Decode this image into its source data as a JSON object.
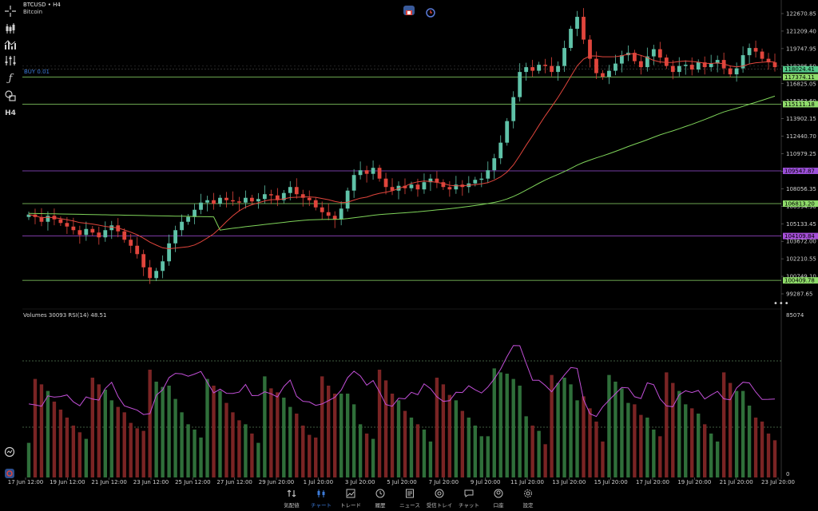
{
  "symbol": {
    "line1": "BTCUSD • H4",
    "line2": "Bitcoin"
  },
  "toolbar": [
    {
      "name": "crosshair-icon"
    },
    {
      "name": "candles-icon"
    },
    {
      "name": "indicators-icon"
    },
    {
      "name": "function-icon"
    },
    {
      "name": "objects-icon"
    },
    {
      "name": "timeframe-label",
      "label": "H4"
    }
  ],
  "trade_line_label": "BUY 0.01",
  "indicator_label": "Volumes 30093 RSI(14) 48.51",
  "price_axis": [
    "122670.85",
    "121209.40",
    "119747.95",
    "118286.50",
    "116825.05",
    "115363.60",
    "113902.15",
    "112440.70",
    "110979.25",
    "109517.80",
    "108056.35",
    "106594.90",
    "105133.45",
    "103672.00",
    "102210.55",
    "100749.10",
    "99287.65"
  ],
  "price_tags": [
    {
      "value": "118024.41",
      "color": "#54c98a",
      "price": 118024.41
    },
    {
      "value": "117374.11",
      "color": "#8fdc6a",
      "price": 117374.11
    },
    {
      "value": "115111.18",
      "color": "#8fdc6a",
      "price": 115111.18
    },
    {
      "value": "109547.87",
      "color": "#9b4fd8",
      "price": 109547.87
    },
    {
      "value": "106813.20",
      "color": "#8fdc6a",
      "price": 106813.2
    },
    {
      "value": "104109.84",
      "color": "#a64fd8",
      "price": 104109.84
    },
    {
      "value": "100409.78",
      "color": "#8fdc6a",
      "price": 100409.78
    }
  ],
  "indicator_axis": {
    "top": "85074",
    "bottom": "0"
  },
  "time_axis": [
    "17 Jun 12:00",
    "19 Jun 12:00",
    "21 Jun 12:00",
    "23 Jun 12:00",
    "25 Jun 12:00",
    "27 Jun 12:00",
    "29 Jun 20:00",
    "1 Jul 20:00",
    "3 Jul 20:00",
    "5 Jul 20:00",
    "7 Jul 20:00",
    "9 Jul 20:00",
    "11 Jul 20:00",
    "13 Jul 20:00",
    "15 Jul 20:00",
    "17 Jul 20:00",
    "19 Jul 20:00",
    "21 Jul 20:00",
    "23 Jul 20:00"
  ],
  "nav": [
    {
      "label": "気配値",
      "icon": "quotes-icon"
    },
    {
      "label": "チャート",
      "icon": "chart-icon",
      "active": true
    },
    {
      "label": "トレード",
      "icon": "trade-icon"
    },
    {
      "label": "履歴",
      "icon": "history-icon"
    },
    {
      "label": "ニュース",
      "icon": "news-icon"
    },
    {
      "label": "受信トレイ",
      "icon": "inbox-icon"
    },
    {
      "label": "チャット",
      "icon": "chat-icon"
    },
    {
      "label": "口座",
      "icon": "account-icon"
    },
    {
      "label": "設定",
      "icon": "settings-icon"
    }
  ],
  "colors": {
    "bull": "#5fc2a8",
    "bear": "#e0453c",
    "ma_fast": "#e0453c",
    "ma_slow": "#7fd45a",
    "rsi": "#c24fd8",
    "accent": "#3d7bd9"
  }
}
